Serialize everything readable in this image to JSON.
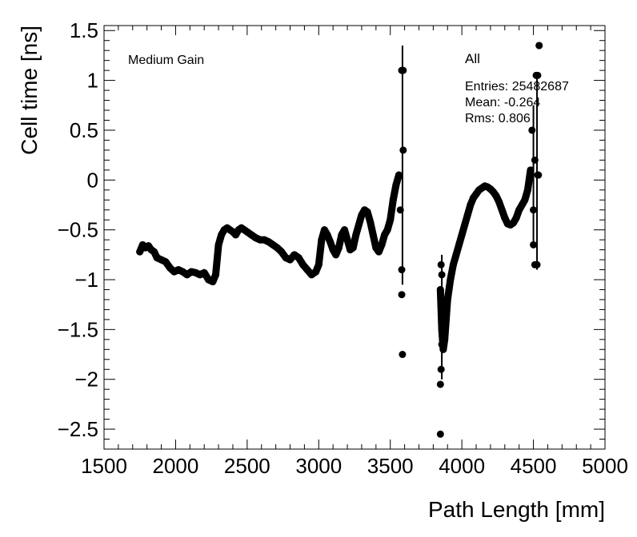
{
  "chart_data": {
    "type": "scatter",
    "xlabel": "Path Length [mm]",
    "ylabel": "Cell time [ns]",
    "xlim": [
      1500,
      5000
    ],
    "ylim": [
      -2.7,
      1.55
    ],
    "xticks": [
      1500,
      2000,
      2500,
      3000,
      3500,
      4000,
      4500,
      5000
    ],
    "yticks": [
      -2.5,
      -2,
      -1.5,
      -1,
      -0.5,
      0,
      0.5,
      1,
      1.5
    ],
    "xtick_labels": [
      "1500",
      "2000",
      "2500",
      "3000",
      "3500",
      "4000",
      "4500",
      "5000"
    ],
    "ytick_labels": [
      "−2.5",
      "−2",
      "−1.5",
      "−1",
      "−0.5",
      "0",
      "0.5",
      "1",
      "1.5"
    ],
    "grid": false,
    "annotation": "Medium Gain",
    "stats_box": {
      "title": "All",
      "entries": "Entries: 25482687",
      "mean": "Mean: -0.264",
      "rms": "Rms: 0.806"
    },
    "series": [
      {
        "x": [
          1750,
          1770,
          1790,
          1810,
          1830,
          1850,
          1870,
          1900,
          1930,
          1960,
          1990,
          2020,
          2050,
          2080,
          2110,
          2140,
          2170,
          2200,
          2230,
          2260,
          2280,
          2300,
          2320,
          2340,
          2360,
          2380,
          2400,
          2420,
          2440,
          2460,
          2480,
          2500,
          2530,
          2560,
          2590,
          2620,
          2650,
          2680,
          2710,
          2740,
          2770,
          2800,
          2830,
          2860,
          2890,
          2920,
          2950,
          2980,
          3000,
          3020,
          3040,
          3060,
          3080,
          3100,
          3120,
          3140,
          3160,
          3180,
          3200,
          3220,
          3240,
          3260,
          3280,
          3300,
          3320,
          3340,
          3360,
          3380,
          3400,
          3420,
          3440,
          3460,
          3480,
          3500,
          3520,
          3540,
          3560,
          3570,
          3580,
          3590,
          3850,
          3860,
          3870,
          3880,
          3890,
          3900,
          3920,
          3940,
          3960,
          3980,
          4000,
          4020,
          4040,
          4060,
          4080,
          4100,
          4120,
          4140,
          4160,
          4180,
          4200,
          4220,
          4240,
          4260,
          4280,
          4300,
          4320,
          4340,
          4360,
          4380,
          4400,
          4420,
          4440,
          4460,
          4480,
          4490,
          4500,
          4510,
          4520,
          4530,
          4540
        ],
        "y": [
          -0.72,
          -0.65,
          -0.68,
          -0.66,
          -0.7,
          -0.72,
          -0.78,
          -0.8,
          -0.82,
          -0.88,
          -0.92,
          -0.9,
          -0.92,
          -0.95,
          -0.92,
          -0.93,
          -0.95,
          -0.93,
          -1.0,
          -1.02,
          -0.95,
          -0.65,
          -0.55,
          -0.5,
          -0.48,
          -0.5,
          -0.52,
          -0.55,
          -0.5,
          -0.48,
          -0.5,
          -0.52,
          -0.55,
          -0.58,
          -0.6,
          -0.6,
          -0.62,
          -0.65,
          -0.68,
          -0.72,
          -0.78,
          -0.8,
          -0.75,
          -0.78,
          -0.85,
          -0.9,
          -0.95,
          -0.92,
          -0.85,
          -0.6,
          -0.5,
          -0.55,
          -0.62,
          -0.7,
          -0.75,
          -0.68,
          -0.55,
          -0.5,
          -0.6,
          -0.7,
          -0.68,
          -0.55,
          -0.45,
          -0.35,
          -0.3,
          -0.32,
          -0.42,
          -0.55,
          -0.68,
          -0.72,
          -0.65,
          -0.55,
          -0.5,
          -0.4,
          -0.2,
          -0.05,
          0.05,
          -0.3,
          1.1,
          0.3,
          -1.1,
          -1.5,
          -1.7,
          -1.6,
          -1.4,
          -1.2,
          -1.0,
          -0.85,
          -0.75,
          -0.65,
          -0.55,
          -0.45,
          -0.35,
          -0.25,
          -0.18,
          -0.14,
          -0.1,
          -0.08,
          -0.06,
          -0.07,
          -0.09,
          -0.12,
          -0.16,
          -0.22,
          -0.3,
          -0.38,
          -0.44,
          -0.45,
          -0.43,
          -0.38,
          -0.3,
          -0.25,
          -0.2,
          -0.1,
          0.1,
          0.5,
          -0.3,
          0.2,
          1.05,
          0.05,
          1.35
        ]
      }
    ],
    "outliers": {
      "x": [
        3580,
        3580,
        3585,
        3590,
        3850,
        3850,
        3855,
        3855,
        3860,
        3860,
        4500,
        4510,
        4520,
        4525,
        4530,
        4535,
        4540
      ],
      "y": [
        -1.15,
        -0.9,
        -1.75,
        1.1,
        -2.55,
        -2.05,
        -0.85,
        -1.9,
        -0.95,
        -1.65,
        -0.65,
        -0.85,
        1.05,
        -0.85,
        1.05,
        0.05,
        1.35
      ]
    },
    "error_bars": [
      {
        "x": 3585,
        "y_low": -1.05,
        "y_high": 1.35
      },
      {
        "x": 3860,
        "y_low": -2.0,
        "y_high": -0.75
      },
      {
        "x": 4500,
        "y_low": -0.65,
        "y_high": 0.75
      },
      {
        "x": 4525,
        "y_low": -0.9,
        "y_high": 1.05
      }
    ]
  }
}
